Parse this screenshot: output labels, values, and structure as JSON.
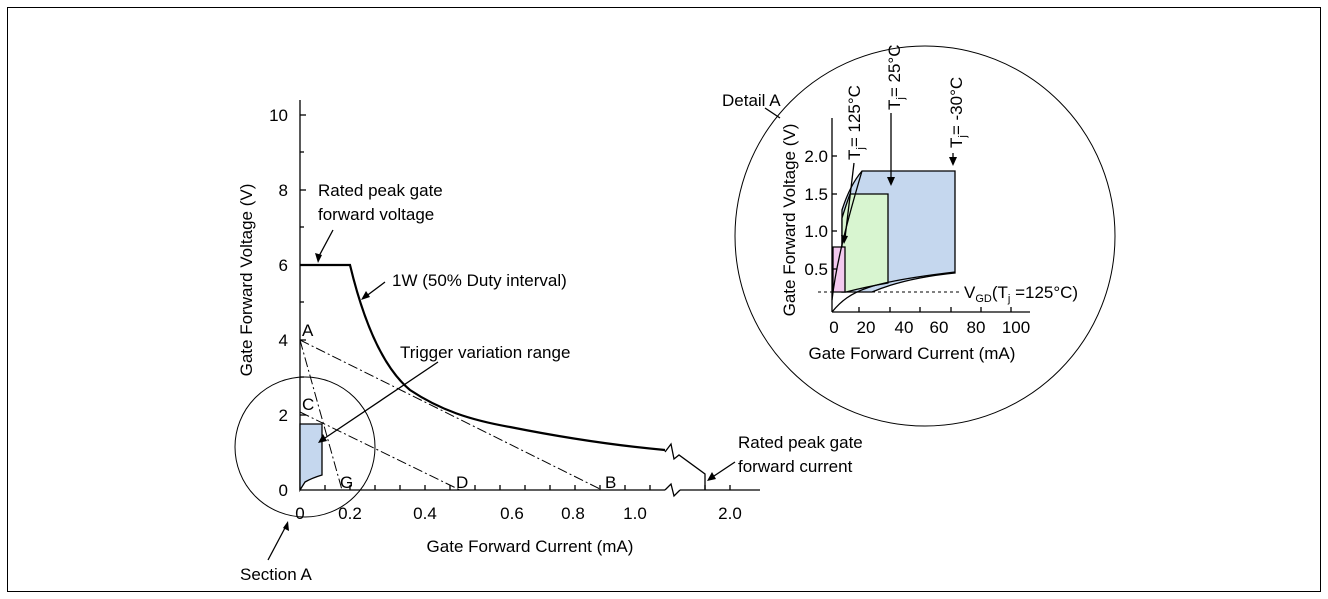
{
  "main_chart": {
    "ylabel": "Gate Forward Voltage (V)",
    "xlabel": "Gate Forward Current (mA)",
    "y_ticks": [
      "10",
      "8",
      "6",
      "4",
      "2",
      "0"
    ],
    "x_ticks": [
      "0",
      "0.2",
      "0.4",
      "0.6",
      "0.8",
      "1.0",
      "2.0"
    ],
    "labels": {
      "rated_voltage_1": "Rated peak gate",
      "rated_voltage_2": "forward voltage",
      "power_curve": "1W (50% Duty interval)",
      "trigger_range": "Trigger variation range",
      "rated_current_1": "Rated peak gate",
      "rated_current_2": "forward current",
      "section": "Section A"
    },
    "points": {
      "a": "A",
      "b": "B",
      "c": "C",
      "d": "D",
      "g": "G"
    }
  },
  "detail": {
    "title": "Detail A",
    "ylabel": "Gate Forward Voltage (V)",
    "xlabel": "Gate Forward Current (mA)",
    "y_ticks": [
      "2.0",
      "1.5",
      "1.0",
      "0.5"
    ],
    "x_ticks": [
      "0",
      "20",
      "40",
      "60",
      "80",
      "100"
    ],
    "tj": {
      "t": "T",
      "sub": "j",
      "v125": "= 125°C",
      "v25": "= 25°C",
      "vm30": "= -30°C"
    },
    "vgd": {
      "v": "V",
      "sub": "GD",
      "open": "(T",
      "tsub": "j",
      "rest": " =125°C)"
    }
  },
  "colors": {
    "blue": "#c5d7ee",
    "green": "#d8f5d0",
    "pink": "#f3c9ee"
  }
}
